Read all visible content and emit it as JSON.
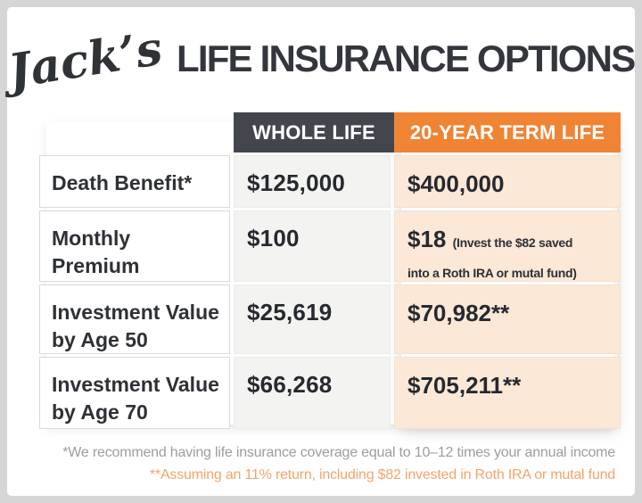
{
  "title": {
    "script": "Jack’s",
    "main": "LIFE INSURANCE OPTIONS"
  },
  "table": {
    "columns": [
      {
        "label": "WHOLE LIFE",
        "color": "#43474d"
      },
      {
        "label": "20-YEAR TERM LIFE",
        "color": "#ef8435"
      }
    ],
    "rows": [
      {
        "label": "Death Benefit*",
        "whole_life": "$125,000",
        "term_life": "$400,000",
        "term_life_note": ""
      },
      {
        "label": "Monthly\nPremium",
        "whole_life": "$100",
        "term_life": "$18",
        "term_life_note": "(Invest the $82 saved\ninto a Roth IRA or mutal fund)"
      },
      {
        "label": "Investment Value\nby Age 50",
        "whole_life": "$25,619",
        "term_life": "$70,982**",
        "term_life_note": ""
      },
      {
        "label": "Investment Value\nby Age 70",
        "whole_life": "$66,268",
        "term_life": "$705,211**",
        "term_life_note": ""
      }
    ]
  },
  "footnotes": [
    {
      "text": "*We recommend having life insurance coverage equal to 10–12 times your annual income",
      "color": "#9b9da0"
    },
    {
      "text": "**Assuming an 11% return, including $82 invested in Roth IRA or mutal fund",
      "color": "#f2a46d"
    }
  ],
  "colors": {
    "header_dark": "#43474d",
    "accent_orange": "#ef8435",
    "term_cell_bg": "#fbe8d7",
    "whole_cell_bg": "#f3f3f1",
    "page_border": "#d6d6d7",
    "text_dark": "#2e3136"
  },
  "chart_data": {
    "type": "table",
    "title": "Jack's LIFE INSURANCE OPTIONS",
    "columns": [
      "",
      "WHOLE LIFE",
      "20-YEAR TERM LIFE"
    ],
    "rows": [
      [
        "Death Benefit*",
        "$125,000",
        "$400,000"
      ],
      [
        "Monthly Premium",
        "$100",
        "$18 (Invest the $82 saved into a Roth IRA or mutal fund)"
      ],
      [
        "Investment Value by Age 50",
        "$25,619",
        "$70,982**"
      ],
      [
        "Investment Value by Age 70",
        "$66,268",
        "$705,211**"
      ]
    ],
    "footnotes": [
      "*We recommend having life insurance coverage equal to 10–12 times your annual income",
      "**Assuming an 11% return, including $82 invested in Roth IRA or mutal fund"
    ]
  }
}
